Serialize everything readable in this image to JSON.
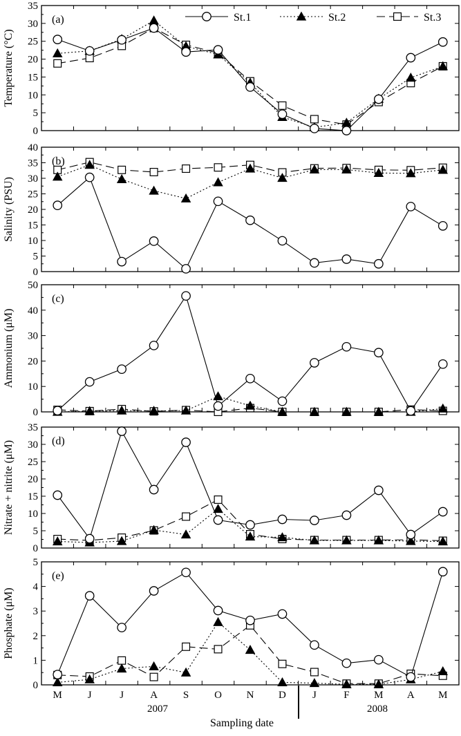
{
  "figure": {
    "xlabel": "Sampling date",
    "month_labels": [
      "M",
      "J",
      "J",
      "A",
      "S",
      "O",
      "N",
      "D",
      "J",
      "F",
      "M",
      "A",
      "M"
    ],
    "year_labels": [
      "2007",
      "2008"
    ],
    "legend": [
      "St.1",
      "St.2",
      "St.3"
    ]
  },
  "chart_data": [
    {
      "type": "line",
      "panel": "(a)",
      "ylabel": "Temperature (°C)",
      "ylim": [
        0,
        35
      ],
      "yticks": [
        0,
        5,
        10,
        15,
        20,
        25,
        30,
        35
      ],
      "categories": [
        "M",
        "J",
        "J",
        "A",
        "S",
        "O",
        "N",
        "D",
        "J",
        "F",
        "M",
        "A",
        "M"
      ],
      "series": [
        {
          "name": "St.1",
          "x": [
            0,
            1,
            2,
            3,
            4,
            5,
            6,
            7,
            8,
            9,
            10,
            11,
            12
          ],
          "values": [
            25.5,
            22.3,
            25.4,
            28.7,
            22.0,
            22.6,
            12.2,
            4.6,
            0.6,
            0.0,
            8.8,
            20.4,
            24.8
          ]
        },
        {
          "name": "St.2",
          "x": [
            0,
            1,
            2,
            3,
            4,
            5,
            6,
            7,
            8,
            9,
            10,
            11,
            12
          ],
          "values": [
            21.6,
            22.3,
            25.6,
            30.8,
            23.6,
            21.3,
            13.4,
            3.8,
            0.9,
            2.2,
            8.9,
            14.8,
            18.0
          ]
        },
        {
          "name": "St.3",
          "x": [
            0,
            1,
            2,
            3,
            4,
            5,
            6,
            7,
            8,
            9,
            10,
            11,
            12
          ],
          "values": [
            18.8,
            20.3,
            23.7,
            28.7,
            24.0,
            21.7,
            13.8,
            7.0,
            3.2,
            1.7,
            8.0,
            13.3,
            18.0
          ]
        }
      ]
    },
    {
      "type": "line",
      "panel": "(b)",
      "ylabel": "Salinity (PSU)",
      "ylim": [
        0,
        40
      ],
      "yticks": [
        0,
        5,
        10,
        15,
        20,
        25,
        30,
        35,
        40
      ],
      "categories": [
        "M",
        "J",
        "J",
        "A",
        "S",
        "O",
        "N",
        "D",
        "J",
        "F",
        "M",
        "A",
        "M"
      ],
      "series": [
        {
          "name": "St.1",
          "x": [
            0,
            1,
            2,
            3,
            4,
            5,
            6,
            7,
            8,
            9,
            10,
            11,
            12
          ],
          "values": [
            21.3,
            30.3,
            3.2,
            9.8,
            0.9,
            22.6,
            16.5,
            9.9,
            2.8,
            4.0,
            2.5,
            20.9,
            14.7
          ]
        },
        {
          "name": "St.2",
          "x": [
            0,
            1,
            2,
            3,
            4,
            5,
            6,
            7,
            8,
            9,
            10,
            11,
            12
          ],
          "values": [
            30.5,
            34.3,
            29.7,
            26.0,
            23.5,
            28.7,
            33.1,
            30.1,
            32.8,
            32.8,
            31.7,
            31.6,
            32.7
          ]
        },
        {
          "name": "St.3",
          "x": [
            0,
            1,
            2,
            3,
            4,
            5,
            6,
            7,
            8,
            9,
            10,
            11,
            12
          ],
          "values": [
            32.7,
            35.2,
            32.7,
            32.0,
            33.1,
            33.5,
            34.3,
            31.9,
            33.2,
            33.3,
            32.7,
            32.6,
            33.4
          ]
        }
      ]
    },
    {
      "type": "line",
      "panel": "(c)",
      "ylabel": "Ammonium (μM)",
      "ylim": [
        0,
        50
      ],
      "yticks": [
        0,
        10,
        20,
        30,
        40,
        50
      ],
      "categories": [
        "M",
        "J",
        "J",
        "A",
        "S",
        "O",
        "N",
        "D",
        "J",
        "F",
        "M",
        "A",
        "M"
      ],
      "series": [
        {
          "name": "St.1",
          "x": [
            0,
            1,
            2,
            3,
            4,
            5,
            6,
            7,
            8,
            9,
            10,
            11,
            12
          ],
          "values": [
            0.5,
            11.8,
            16.8,
            26.1,
            45.6,
            2.3,
            13.1,
            4.2,
            19.3,
            25.6,
            23.3,
            0.4,
            18.8
          ]
        },
        {
          "name": "St.2",
          "x": [
            0,
            1,
            2,
            3,
            4,
            5,
            6,
            7,
            8,
            9,
            10,
            11,
            12
          ],
          "values": [
            0.0,
            0.3,
            0.5,
            0.4,
            0.5,
            6.1,
            2.4,
            0.0,
            0.0,
            0.0,
            0.0,
            0.0,
            1.3
          ]
        },
        {
          "name": "St.3",
          "x": [
            0,
            1,
            2,
            3,
            4,
            5,
            6,
            7,
            8,
            9,
            10,
            11,
            12
          ],
          "values": [
            0.8,
            0.3,
            1.1,
            0.2,
            0.7,
            0.0,
            1.5,
            0.0,
            0.0,
            0.0,
            0.0,
            0.9,
            0.4
          ]
        }
      ]
    },
    {
      "type": "line",
      "panel": "(d)",
      "ylabel": "Nitrate + nitrite (μM)",
      "ylim": [
        0,
        35
      ],
      "yticks": [
        0,
        5,
        10,
        15,
        20,
        25,
        30,
        35
      ],
      "categories": [
        "M",
        "J",
        "J",
        "A",
        "S",
        "O",
        "N",
        "D",
        "J",
        "F",
        "M",
        "A",
        "M"
      ],
      "series": [
        {
          "name": "St.1",
          "x": [
            0,
            1,
            2,
            3,
            4,
            5,
            6,
            7,
            8,
            9,
            10,
            11,
            12
          ],
          "values": [
            15.3,
            2.7,
            33.8,
            16.9,
            30.6,
            8.1,
            6.7,
            8.3,
            8.0,
            9.5,
            16.7,
            3.9,
            10.5
          ]
        },
        {
          "name": "St.2",
          "x": [
            0,
            1,
            2,
            3,
            4,
            5,
            6,
            7,
            8,
            9,
            10,
            11,
            12
          ],
          "values": [
            1.9,
            1.6,
            2.0,
            5.2,
            3.9,
            11.3,
            3.3,
            3.1,
            2.2,
            2.2,
            2.2,
            2.0,
            1.9
          ]
        },
        {
          "name": "St.3",
          "x": [
            0,
            1,
            2,
            3,
            4,
            5,
            6,
            7,
            8,
            9,
            10,
            11,
            12
          ],
          "values": [
            2.6,
            2.2,
            3.0,
            5.1,
            9.1,
            14.0,
            4.0,
            2.6,
            2.3,
            2.3,
            2.3,
            2.4,
            2.1
          ]
        }
      ]
    },
    {
      "type": "line",
      "panel": "(e)",
      "ylabel": "Phosphate (μM)",
      "ylim": [
        0,
        5
      ],
      "yticks": [
        0,
        1,
        2,
        3,
        4,
        5
      ],
      "categories": [
        "M",
        "J",
        "J",
        "A",
        "S",
        "O",
        "N",
        "D",
        "J",
        "F",
        "M",
        "A",
        "M"
      ],
      "series": [
        {
          "name": "St.1",
          "x": [
            0,
            1,
            2,
            3,
            4,
            5,
            6,
            7,
            8,
            9,
            10,
            11,
            12
          ],
          "values": [
            0.42,
            3.62,
            2.33,
            3.82,
            4.57,
            3.02,
            2.62,
            2.88,
            1.62,
            0.88,
            1.02,
            0.32,
            4.6
          ]
        },
        {
          "name": "St.2",
          "x": [
            0,
            1,
            2,
            3,
            4,
            5,
            6,
            7,
            8,
            9,
            10,
            11,
            12
          ],
          "values": [
            0.1,
            0.22,
            0.66,
            0.75,
            0.5,
            2.55,
            1.42,
            0.1,
            0.07,
            0.02,
            0.02,
            0.22,
            0.55
          ]
        },
        {
          "name": "St.3",
          "x": [
            0,
            1,
            2,
            3,
            4,
            5,
            6,
            7,
            8,
            9,
            10,
            11,
            12
          ],
          "values": [
            0.4,
            0.34,
            0.99,
            0.32,
            1.55,
            1.45,
            2.42,
            0.85,
            0.52,
            0.05,
            0.05,
            0.45,
            0.37
          ]
        }
      ]
    }
  ]
}
